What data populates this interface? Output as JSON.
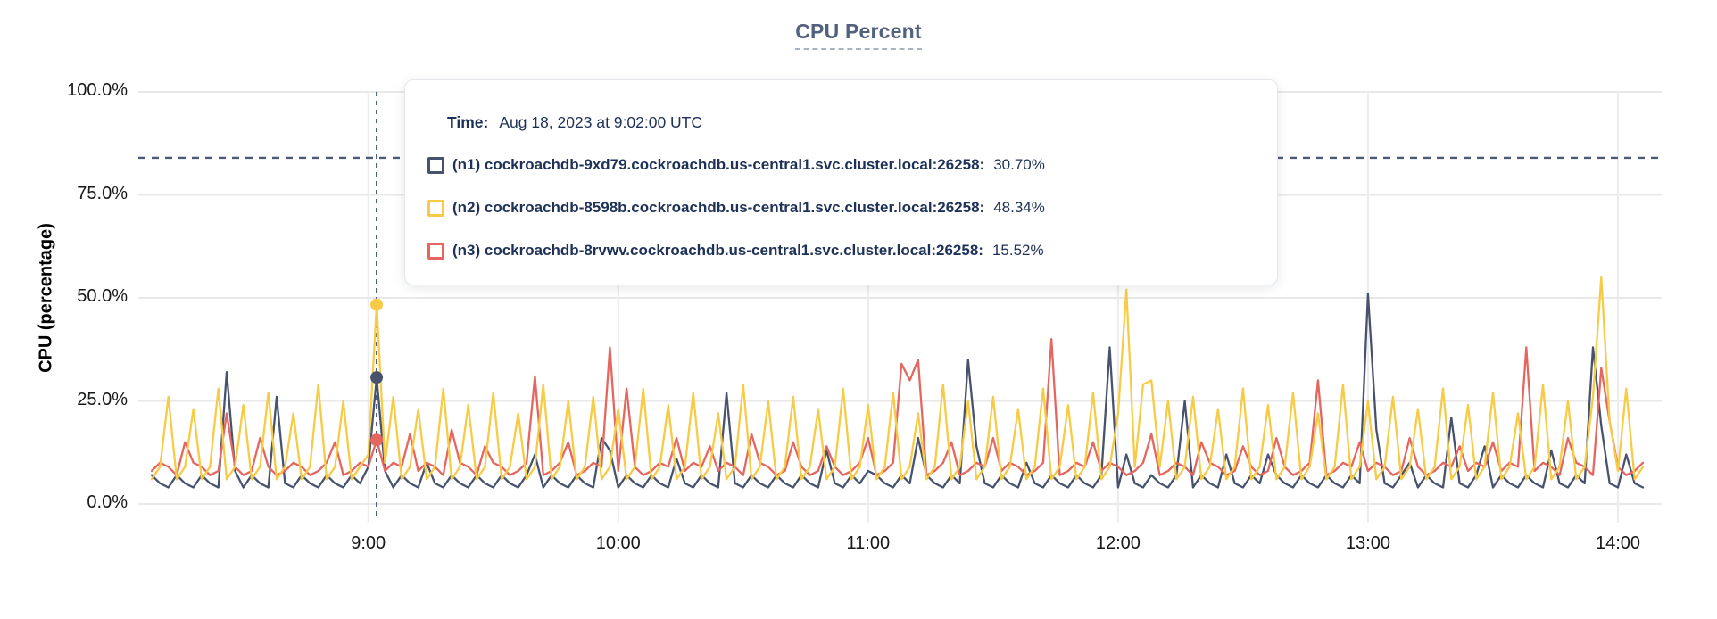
{
  "chart": {
    "title": "CPU Percent"
  },
  "tooltip": {
    "time_label": "Time:",
    "time_value": "Aug 18, 2023 at 9:02:00 UTC",
    "rows": [
      {
        "name": "(n1) cockroachdb-9xd79.cockroachdb.us-central1.svc.cluster.local:26258:",
        "value": "30.70%"
      },
      {
        "name": "(n2) cockroachdb-8598b.cockroachdb.us-central1.svc.cluster.local:26258:",
        "value": "48.34%"
      },
      {
        "name": "(n3) cockroachdb-8rvwv.cockroachdb.us-central1.svc.cluster.local:26258:",
        "value": "15.52%"
      }
    ]
  },
  "colors": {
    "grid": "#e8e8e8",
    "dashed_guides": "#4a5b76",
    "tooltip_text": "#1e3158",
    "title_text": "#51617e",
    "series_n1": "#47536e",
    "series_n2": "#f7cb45",
    "series_n3": "#e5665f"
  },
  "chart_data": {
    "type": "line",
    "title": "CPU Percent",
    "xlabel": "",
    "ylabel": "CPU (percentage)",
    "ylim": [
      0,
      100
    ],
    "grid": true,
    "legend_position": "tooltip-overlay",
    "yticks": [
      {
        "label": "100.0%",
        "value": 100
      },
      {
        "label": "75.0%",
        "value": 75
      },
      {
        "label": "50.0%",
        "value": 50
      },
      {
        "label": "25.0%",
        "value": 25
      },
      {
        "label": "0.0%",
        "value": 0
      }
    ],
    "xticks": [
      {
        "label": "9:00",
        "minutes": 540
      },
      {
        "label": "10:00",
        "minutes": 600
      },
      {
        "label": "11:00",
        "minutes": 660
      },
      {
        "label": "12:00",
        "minutes": 720
      },
      {
        "label": "13:00",
        "minutes": 780
      },
      {
        "label": "14:00",
        "minutes": 840
      }
    ],
    "time_start_minutes": 488,
    "time_step_minutes": 2,
    "time_unit": "minutes since 00:00 UTC, Aug 18 2023",
    "threshold_value": 84,
    "crosshair": {
      "minutes": 542,
      "time_label": "Aug 18, 2023 at 9:02:00 UTC"
    },
    "draw_order": [
      0,
      2,
      1
    ],
    "series": [
      {
        "id": "n1",
        "name": "cockroachdb-9xd79.cockroachdb.us-central1.svc.cluster.local:26258",
        "color": "#47536e",
        "hover_value": 30.7,
        "values": [
          7,
          5,
          4,
          7,
          5,
          4,
          7,
          5,
          4,
          32,
          8,
          4,
          7,
          5,
          4,
          26,
          5,
          4,
          7,
          5,
          4,
          7,
          5,
          4,
          7,
          5,
          9,
          30.7,
          8,
          4,
          7,
          5,
          4,
          10,
          5,
          4,
          7,
          5,
          4,
          7,
          5,
          4,
          7,
          5,
          4,
          7,
          12,
          4,
          7,
          5,
          4,
          7,
          5,
          4,
          16,
          13,
          4,
          7,
          5,
          4,
          7,
          5,
          4,
          11,
          5,
          4,
          7,
          5,
          4,
          27,
          5,
          4,
          7,
          5,
          4,
          7,
          5,
          4,
          7,
          5,
          4,
          13,
          5,
          4,
          7,
          5,
          8,
          7,
          5,
          4,
          7,
          5,
          16,
          7,
          5,
          4,
          7,
          5,
          35,
          14,
          5,
          4,
          7,
          5,
          4,
          10,
          5,
          4,
          7,
          5,
          4,
          7,
          5,
          4,
          7,
          38,
          4,
          12,
          5,
          4,
          7,
          5,
          4,
          7,
          25,
          4,
          7,
          5,
          4,
          12,
          5,
          4,
          7,
          5,
          12,
          7,
          5,
          4,
          7,
          5,
          4,
          7,
          5,
          4,
          7,
          5,
          51,
          18,
          5,
          4,
          7,
          10,
          4,
          7,
          5,
          4,
          21,
          5,
          4,
          7,
          14,
          4,
          7,
          5,
          4,
          7,
          5,
          4,
          13,
          5,
          4,
          7,
          5,
          38,
          19,
          5,
          4,
          12,
          5,
          4
        ]
      },
      {
        "id": "n2",
        "name": "cockroachdb-8598b.cockroachdb.us-central1.svc.cluster.local:26258",
        "color": "#f7cb45",
        "hover_value": 48.34,
        "values": [
          6,
          9,
          26,
          6,
          9,
          23,
          6,
          9,
          28,
          6,
          9,
          24,
          6,
          9,
          27,
          6,
          9,
          22,
          6,
          9,
          29,
          6,
          9,
          25,
          6,
          9,
          12,
          48.34,
          10,
          26,
          6,
          9,
          23,
          6,
          9,
          28,
          6,
          9,
          24,
          6,
          9,
          27,
          6,
          9,
          22,
          6,
          9,
          29,
          6,
          9,
          25,
          6,
          9,
          26,
          6,
          9,
          23,
          6,
          9,
          28,
          6,
          9,
          24,
          6,
          9,
          27,
          6,
          9,
          22,
          6,
          9,
          29,
          6,
          9,
          25,
          6,
          9,
          26,
          6,
          9,
          23,
          6,
          9,
          28,
          6,
          9,
          24,
          6,
          9,
          27,
          6,
          9,
          22,
          6,
          9,
          29,
          6,
          9,
          25,
          6,
          9,
          26,
          6,
          9,
          23,
          6,
          9,
          28,
          6,
          9,
          24,
          6,
          9,
          27,
          6,
          9,
          22,
          52,
          9,
          29,
          30,
          9,
          25,
          6,
          9,
          26,
          6,
          9,
          23,
          6,
          9,
          28,
          6,
          9,
          24,
          6,
          9,
          27,
          6,
          9,
          22,
          6,
          9,
          29,
          6,
          9,
          25,
          6,
          9,
          26,
          6,
          9,
          23,
          6,
          9,
          28,
          6,
          9,
          24,
          6,
          9,
          27,
          6,
          9,
          22,
          6,
          9,
          29,
          6,
          9,
          25,
          6,
          9,
          26,
          55,
          20,
          8,
          28,
          6,
          9
        ]
      },
      {
        "id": "n3",
        "name": "cockroachdb-8rvwv.cockroachdb.us-central1.svc.cluster.local:26258",
        "color": "#e5665f",
        "hover_value": 15.52,
        "values": [
          8,
          10,
          9,
          7,
          15,
          10,
          9,
          7,
          8,
          22,
          9,
          7,
          8,
          16,
          9,
          7,
          8,
          10,
          9,
          7,
          8,
          10,
          15,
          7,
          8,
          10,
          9,
          15.52,
          8,
          10,
          9,
          17,
          8,
          10,
          9,
          7,
          18,
          10,
          9,
          7,
          14,
          10,
          9,
          7,
          8,
          10,
          31,
          7,
          8,
          10,
          15,
          7,
          8,
          10,
          9,
          38,
          8,
          28,
          9,
          7,
          8,
          10,
          9,
          16,
          8,
          10,
          9,
          14,
          8,
          10,
          9,
          7,
          17,
          10,
          9,
          7,
          8,
          15,
          9,
          7,
          8,
          14,
          9,
          7,
          8,
          10,
          16,
          7,
          8,
          10,
          34,
          30,
          35,
          7,
          8,
          10,
          15,
          7,
          8,
          10,
          9,
          16,
          8,
          10,
          9,
          7,
          8,
          10,
          40,
          7,
          8,
          10,
          9,
          15,
          8,
          10,
          9,
          7,
          8,
          10,
          17,
          7,
          8,
          10,
          9,
          7,
          15,
          10,
          9,
          7,
          8,
          14,
          9,
          7,
          8,
          16,
          9,
          7,
          8,
          10,
          30,
          7,
          8,
          10,
          9,
          15,
          8,
          10,
          9,
          7,
          8,
          16,
          9,
          7,
          8,
          10,
          9,
          14,
          8,
          10,
          9,
          15,
          8,
          10,
          9,
          38,
          8,
          10,
          9,
          7,
          16,
          10,
          9,
          7,
          33,
          20,
          9,
          7,
          8,
          10
        ]
      }
    ]
  }
}
